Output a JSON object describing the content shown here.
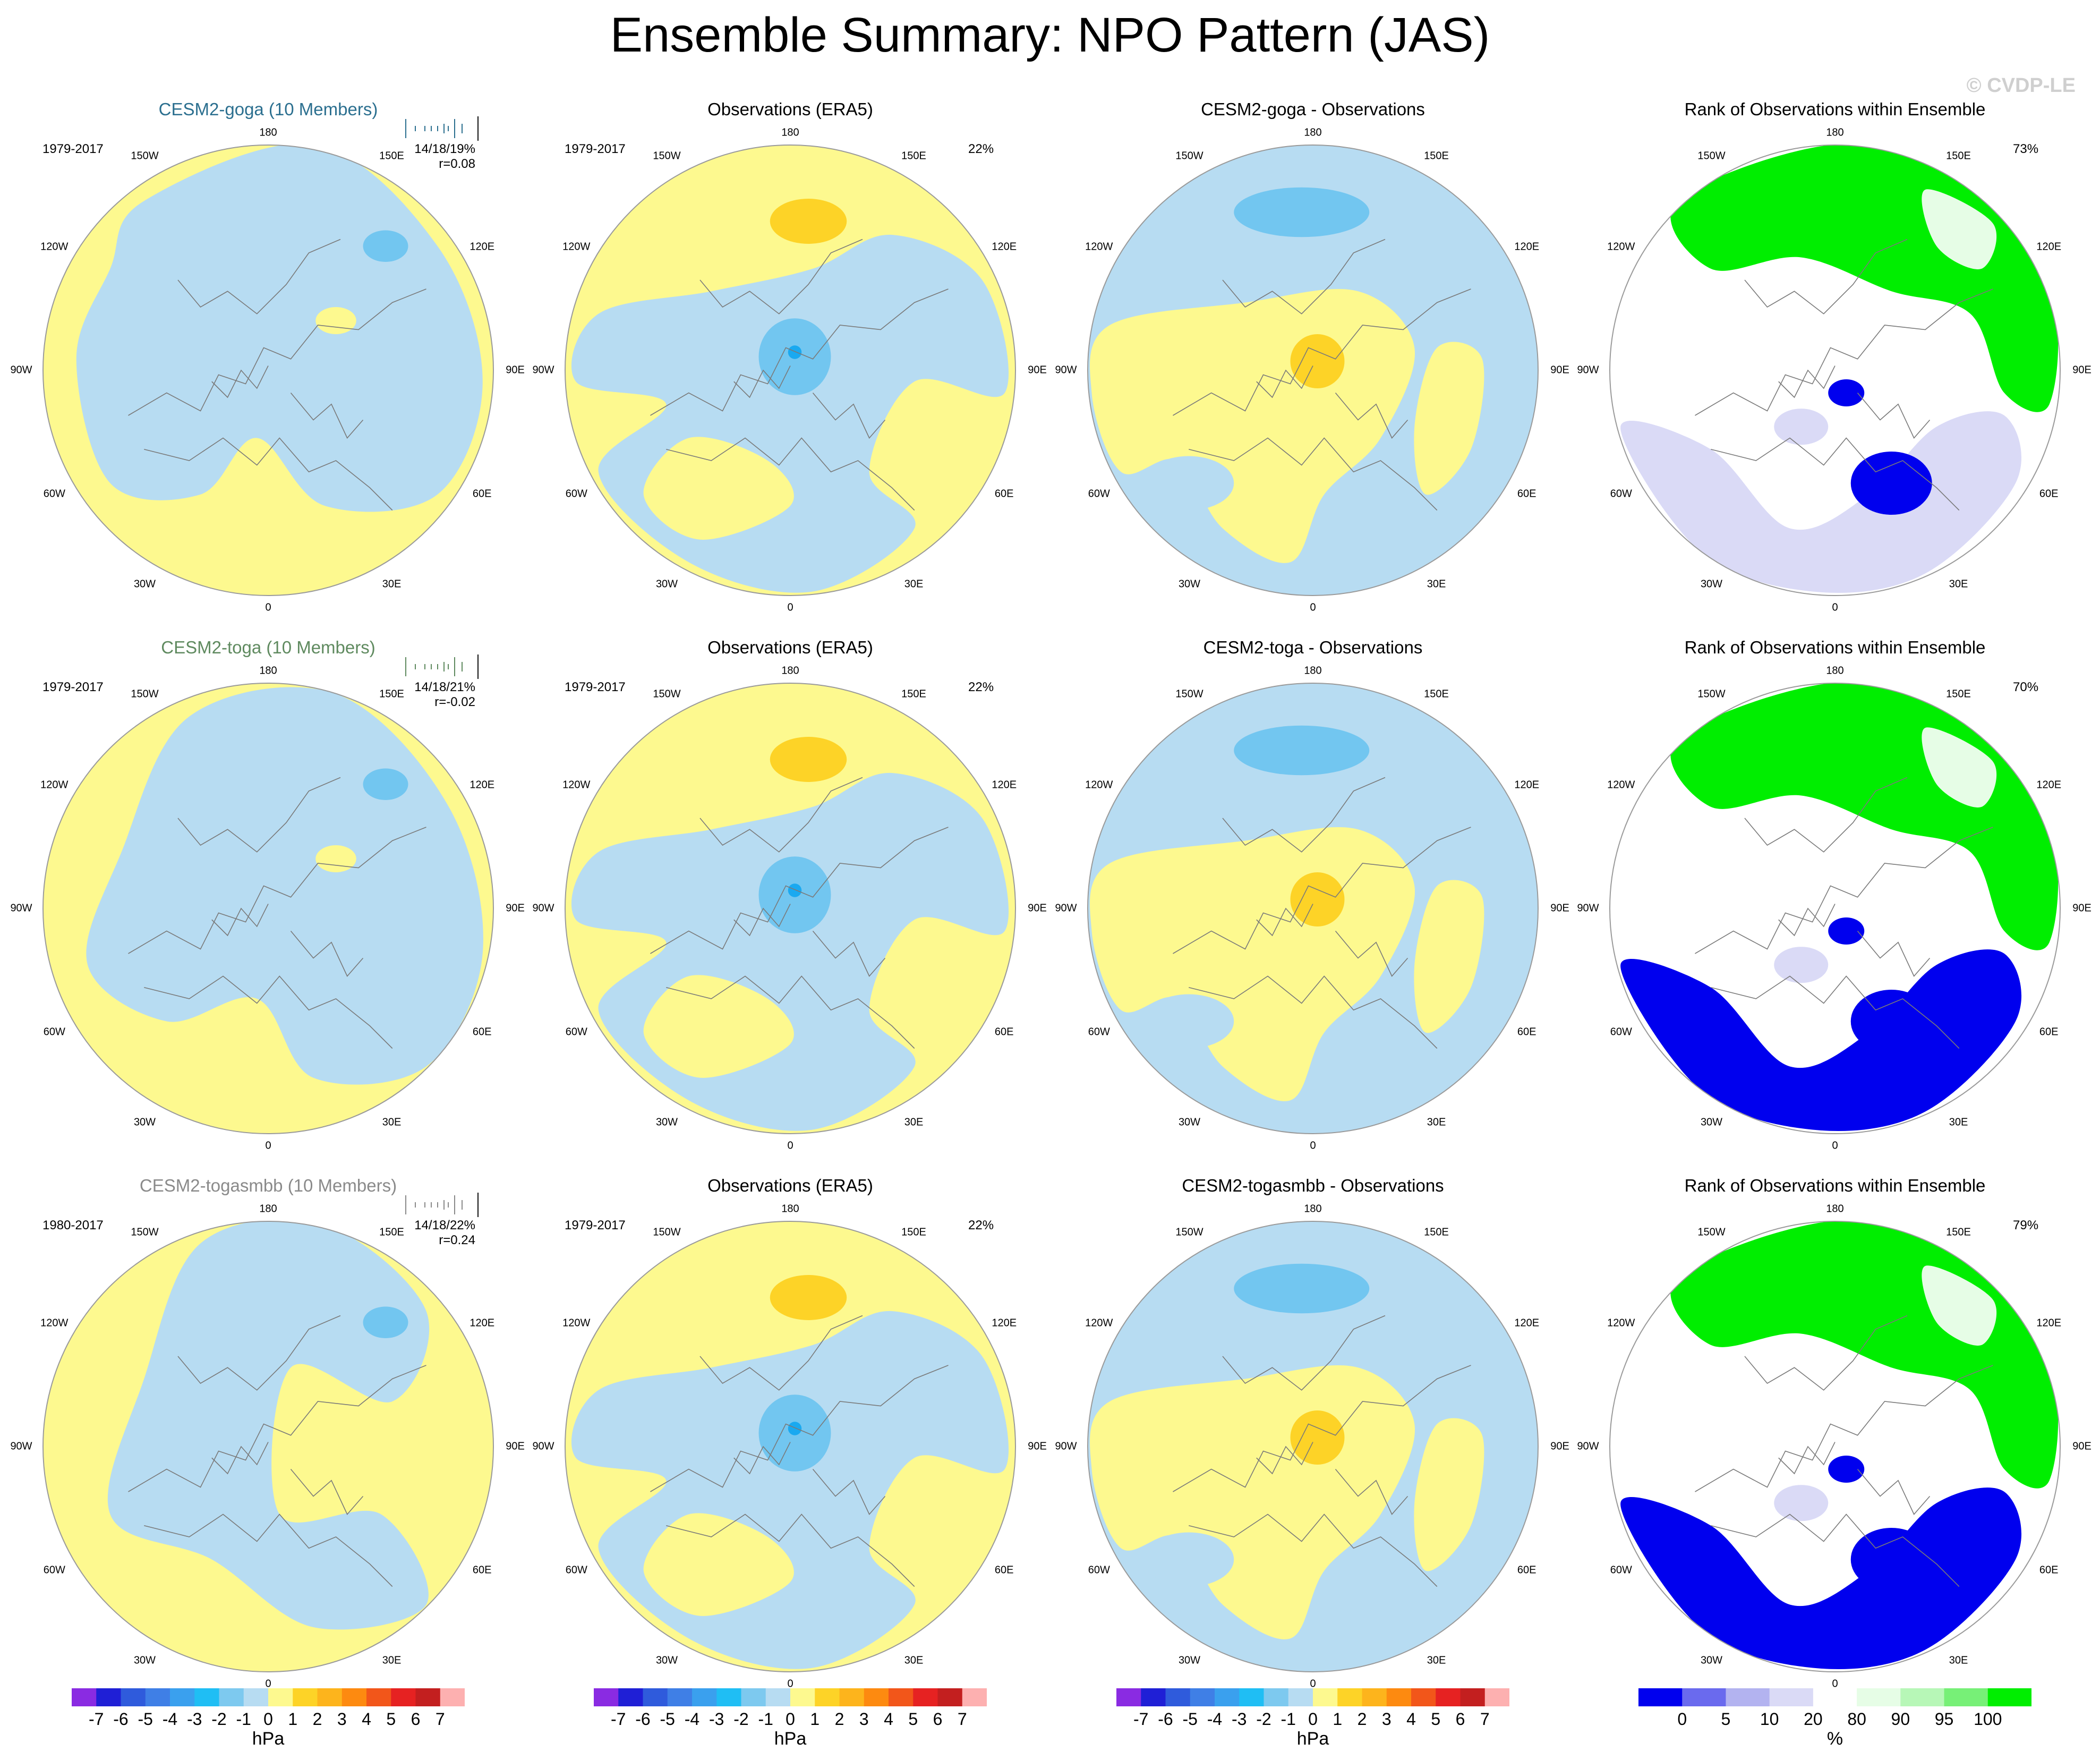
{
  "title": "Ensemble Summary: NPO Pattern (JAS)",
  "watermark": "© CVDP-LE",
  "colors": {
    "pos1": "#fdf98f",
    "pos2": "#fdd327",
    "neg1": "#b7dcf2",
    "neg2": "#72c6f0",
    "neg3": "#1aa9f0",
    "rank_blue": "#0000ee",
    "rank_white": "#ffffff",
    "rank_lav": "#dadaf6",
    "rank_lightgreen": "#e6fde6",
    "rank_green": "#00ee00",
    "coast": "#7a7a7a"
  },
  "lon_labels": [
    "180",
    "150E",
    "120E",
    "90E",
    "60E",
    "30E",
    "0",
    "30W",
    "60W",
    "90W",
    "120W",
    "150W"
  ],
  "rows": [
    {
      "model": {
        "title": "CESM2-goga (10 Members)",
        "title_color": "#2b6f8f",
        "period": "1979-2017",
        "stats_line1": "14/18/19%",
        "stats_line2": "r=0.08",
        "stick_color": "#2b6f8f"
      },
      "obs": {
        "title": "Observations (ERA5)",
        "period": "1979-2017",
        "pct": "22%"
      },
      "diff": {
        "title": "CESM2-goga - Observations"
      },
      "rank": {
        "title": "Rank of Observations within Ensemble",
        "pct": "73%"
      }
    },
    {
      "model": {
        "title": "CESM2-toga (10 Members)",
        "title_color": "#5f8a5f",
        "period": "1979-2017",
        "stats_line1": "14/18/21%",
        "stats_line2": "r=-0.02",
        "stick_color": "#5f8a5f"
      },
      "obs": {
        "title": "Observations (ERA5)",
        "period": "1979-2017",
        "pct": "22%"
      },
      "diff": {
        "title": "CESM2-toga - Observations"
      },
      "rank": {
        "title": "Rank of Observations within Ensemble",
        "pct": "70%"
      }
    },
    {
      "model": {
        "title": "CESM2-togasmbb (10 Members)",
        "title_color": "#8a8a8a",
        "period": "1980-2017",
        "stats_line1": "14/18/22%",
        "stats_line2": "r=0.24",
        "stick_color": "#8a8a8a"
      },
      "obs": {
        "title": "Observations (ERA5)",
        "period": "1979-2017",
        "pct": "22%"
      },
      "diff": {
        "title": "CESM2-togasmbb - Observations"
      },
      "rank": {
        "title": "Rank of Observations within Ensemble",
        "pct": "79%"
      }
    }
  ],
  "colorbar_hpa": {
    "unit": "hPa",
    "ticks": [
      "-7",
      "-6",
      "-5",
      "-4",
      "-3",
      "-2",
      "-1",
      "0",
      "1",
      "2",
      "3",
      "4",
      "5",
      "6",
      "7"
    ],
    "colors": [
      "#8a2be2",
      "#1f1fd6",
      "#2f5bdc",
      "#3f7fe6",
      "#3aa0ee",
      "#1fbef4",
      "#7dc9ef",
      "#b7dcf2",
      "#fdf98f",
      "#fdd327",
      "#fdb41c",
      "#fd8a10",
      "#f2561a",
      "#e62222",
      "#c31f1f",
      "#fdb0b0"
    ]
  },
  "colorbar_rank": {
    "unit": "%",
    "ticks": [
      "0",
      "5",
      "10",
      "20",
      "80",
      "90",
      "95",
      "100"
    ],
    "colors": [
      "#0000ee",
      "#6a6aee",
      "#b3b3f0",
      "#dadaf6",
      "#ffffff",
      "#e6fde6",
      "#b7f7b7",
      "#77f077",
      "#00ee00"
    ]
  }
}
